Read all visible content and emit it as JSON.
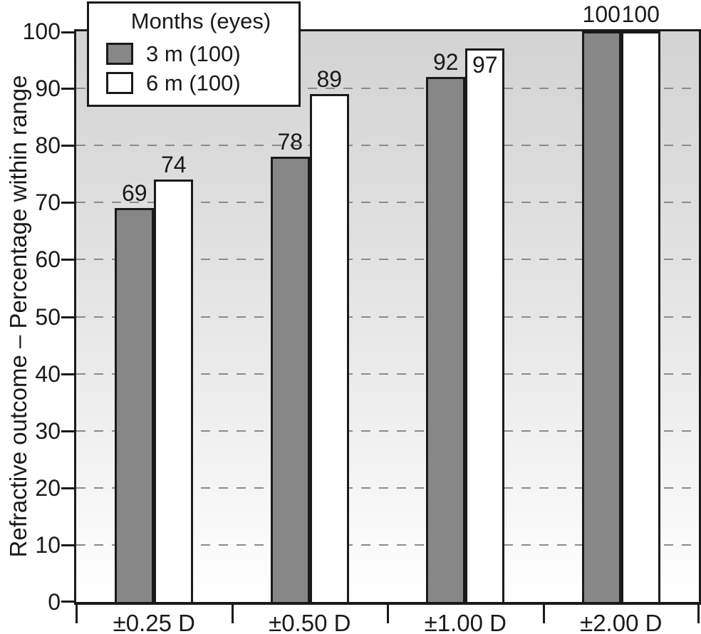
{
  "chart_data": {
    "type": "bar",
    "title": "",
    "xlabel": "",
    "ylabel": "Refractive outcome – Percentage within range",
    "categories": [
      "±0.25 D",
      "±0.50 D",
      "±1.00 D",
      "±2.00 D"
    ],
    "series": [
      {
        "name": "3 m (100)",
        "color": "#878787",
        "values": [
          69,
          78,
          92,
          100
        ]
      },
      {
        "name": "6 m (100)",
        "color": "#ffffff",
        "values": [
          74,
          89,
          97,
          100
        ]
      }
    ],
    "legend": {
      "title": "Months (eyes)",
      "position": "top-left"
    },
    "ylim": [
      0,
      100
    ],
    "yticks": [
      0,
      10,
      20,
      30,
      40,
      50,
      60,
      70,
      80,
      90,
      100
    ],
    "grid": "horizontal-dashed",
    "value_labels": true
  },
  "colors": {
    "bar_border": "#1a1a1a",
    "gridline": "#8b8b8b",
    "plot_bg_top": "#d3d3d3",
    "plot_bg_bottom": "#ffffff",
    "text": "#1a1a1a"
  }
}
